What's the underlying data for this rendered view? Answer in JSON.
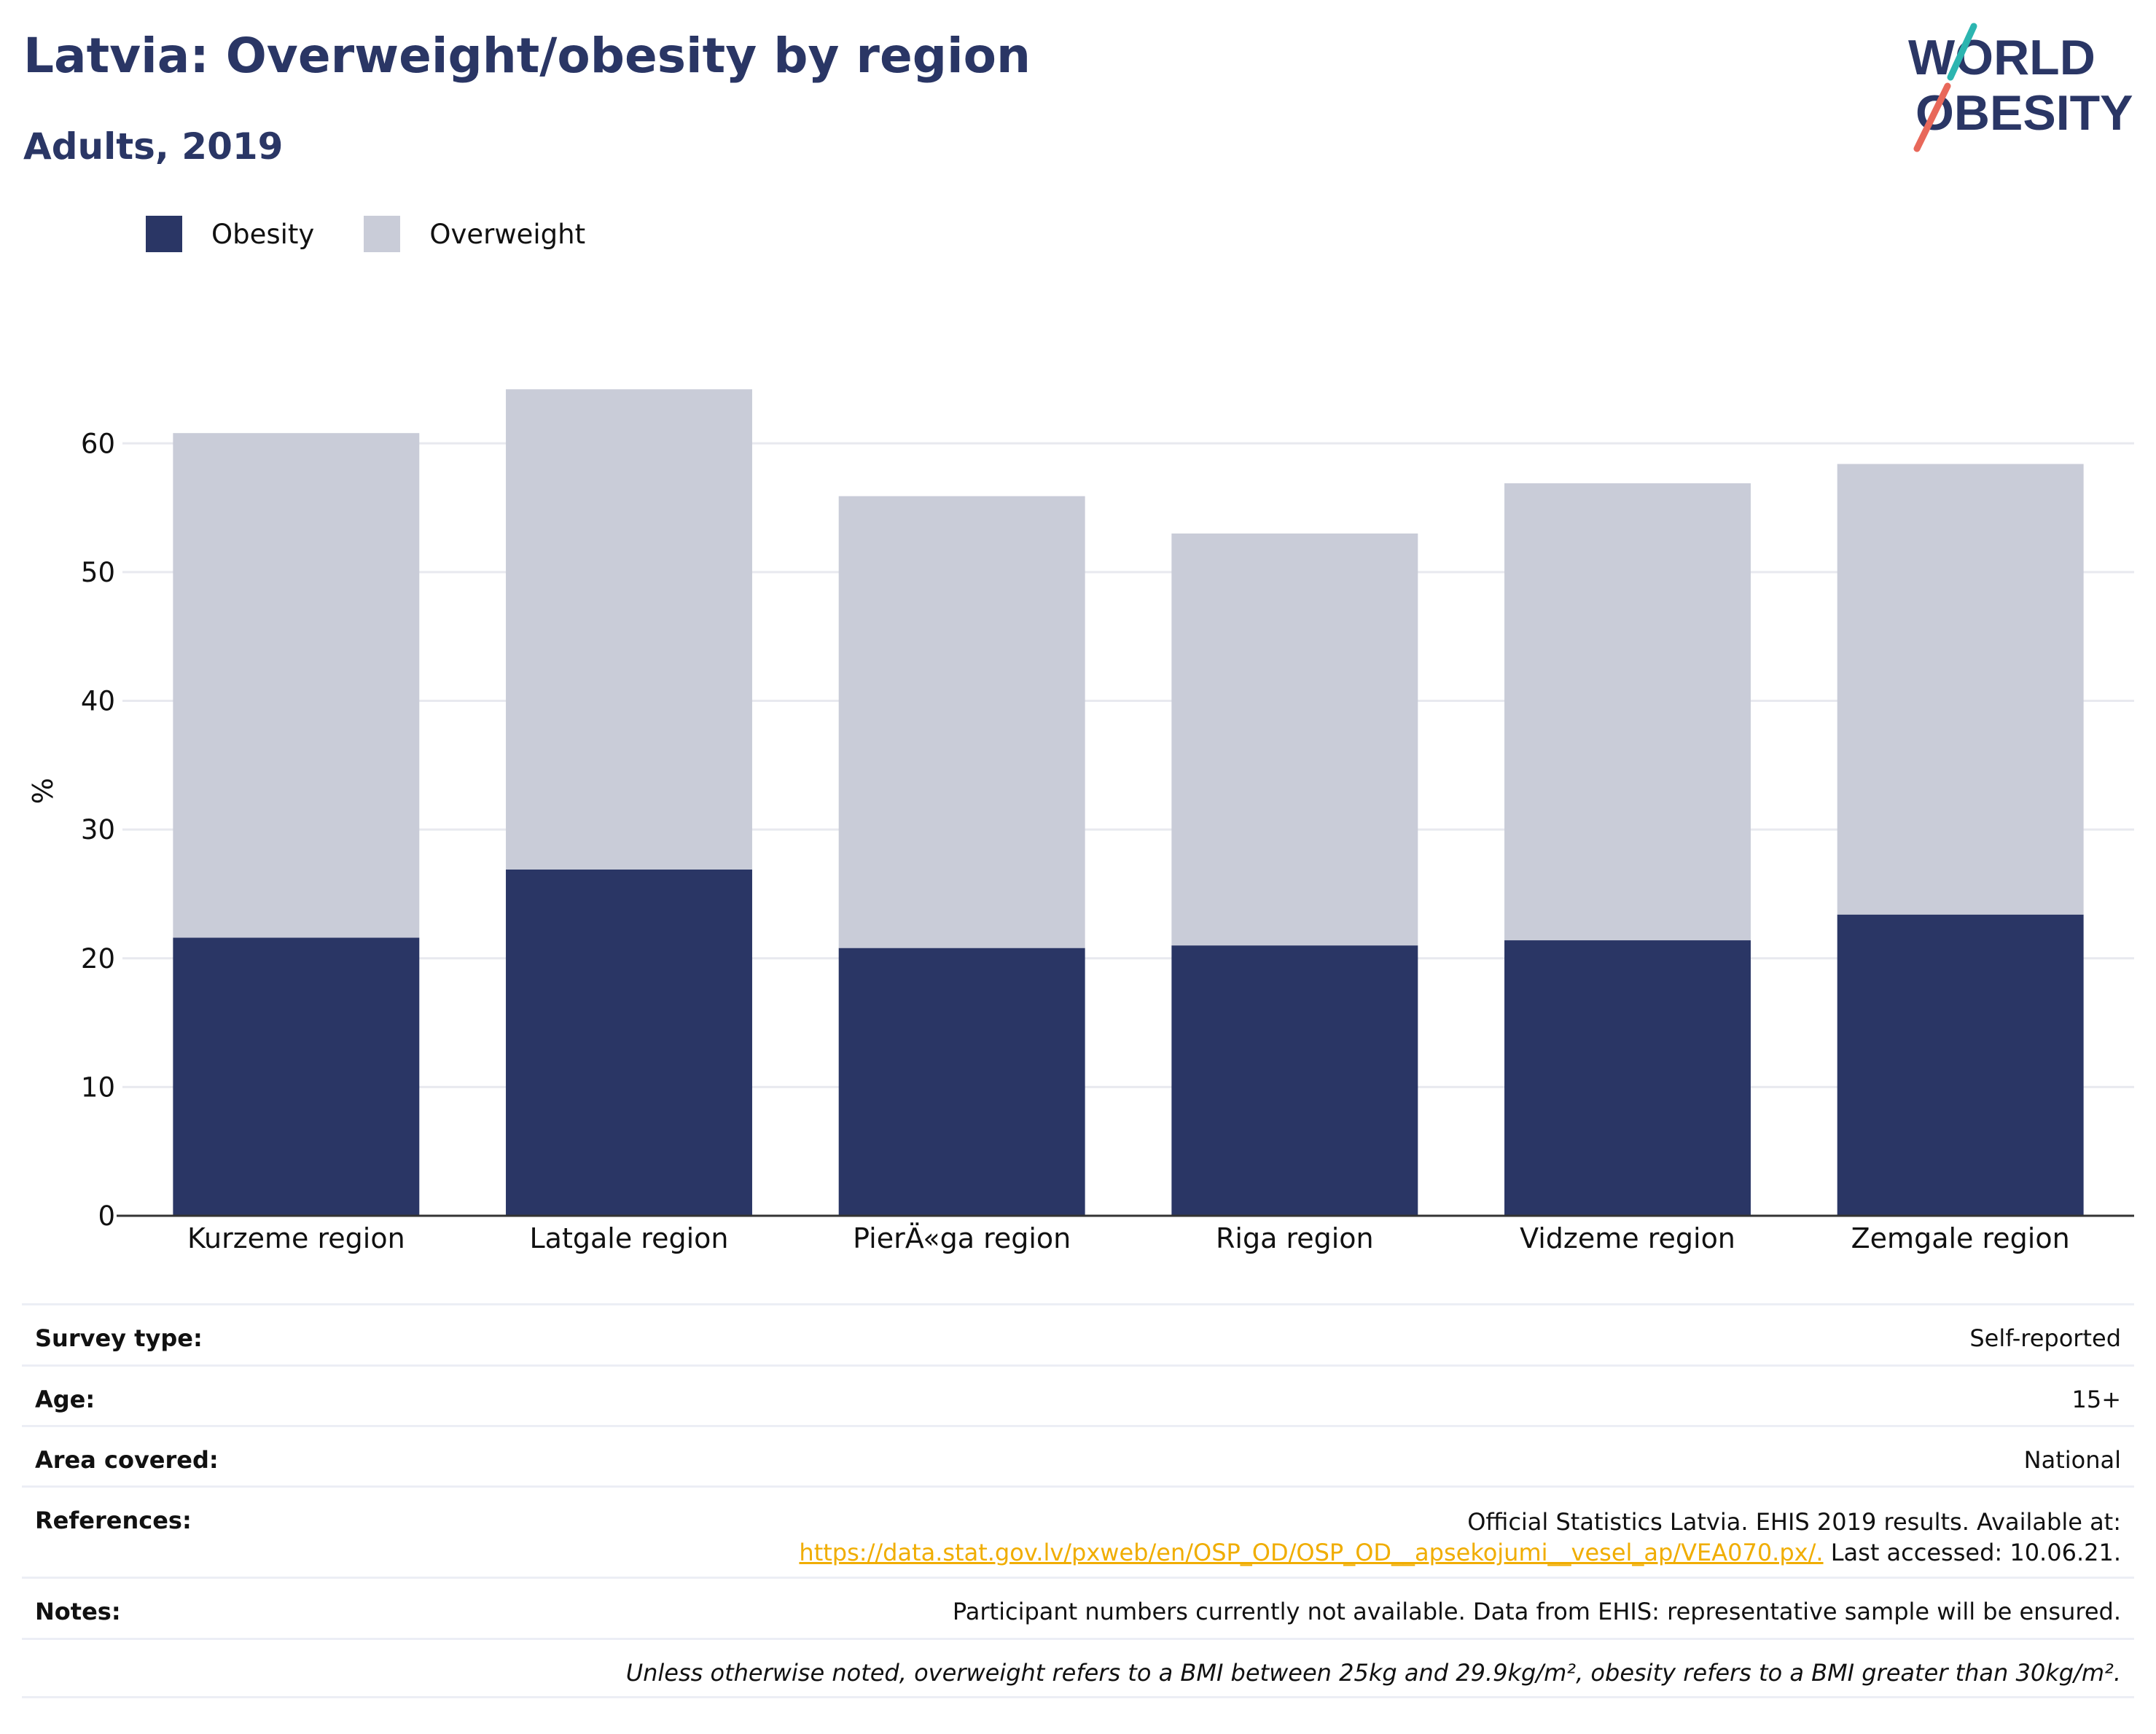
{
  "header": {
    "title": "Latvia: Overweight/obesity by region",
    "subtitle": "Adults, 2019"
  },
  "logo": {
    "line1": "WORLD",
    "line2": "OBESITY"
  },
  "colors": {
    "obesity": "#2a3665",
    "overweight": "#c9ccd8",
    "title": "#2a3665",
    "link": "#f0ad00",
    "logo_teal": "#2cb5b0",
    "logo_coral": "#e8685a"
  },
  "chart_data": {
    "type": "bar",
    "stacked": true,
    "categories": [
      "Kurzeme region",
      "Latgale region",
      "PierÄ«ga region",
      "Riga region",
      "Vidzeme region",
      "Zemgale region"
    ],
    "series": [
      {
        "name": "Obesity",
        "values": [
          21.6,
          26.9,
          20.8,
          21.0,
          21.4,
          23.4
        ]
      },
      {
        "name": "Overweight",
        "values": [
          39.2,
          37.3,
          35.1,
          32.0,
          35.5,
          35.0
        ]
      }
    ],
    "xlabel": "",
    "ylabel": "%",
    "ylim": [
      0,
      65
    ],
    "yticks": [
      0,
      10,
      20,
      30,
      40,
      50,
      60
    ],
    "grid": true,
    "legend_position": "top-left"
  },
  "info": {
    "survey_type": {
      "label": "Survey type:",
      "value": "Self-reported"
    },
    "age": {
      "label": "Age:",
      "value": "15+"
    },
    "area": {
      "label": "Area covered:",
      "value": "National"
    },
    "references": {
      "label": "References:",
      "line1": "Official Statistics Latvia. EHIS 2019 results. Available at:",
      "link": "https://data.stat.gov.lv/pxweb/en/OSP_OD/OSP_OD__apsekojumi__vesel_ap/VEA070.px/.",
      "after_link": " Last accessed: 10.06.21."
    },
    "notes": {
      "label": "Notes:",
      "value": "Participant numbers currently not available. Data from EHIS: representative sample will be ensured."
    },
    "footnote": "Unless otherwise noted, overweight refers to a BMI between 25kg and 29.9kg/m², obesity refers to a BMI greater than 30kg/m²."
  }
}
